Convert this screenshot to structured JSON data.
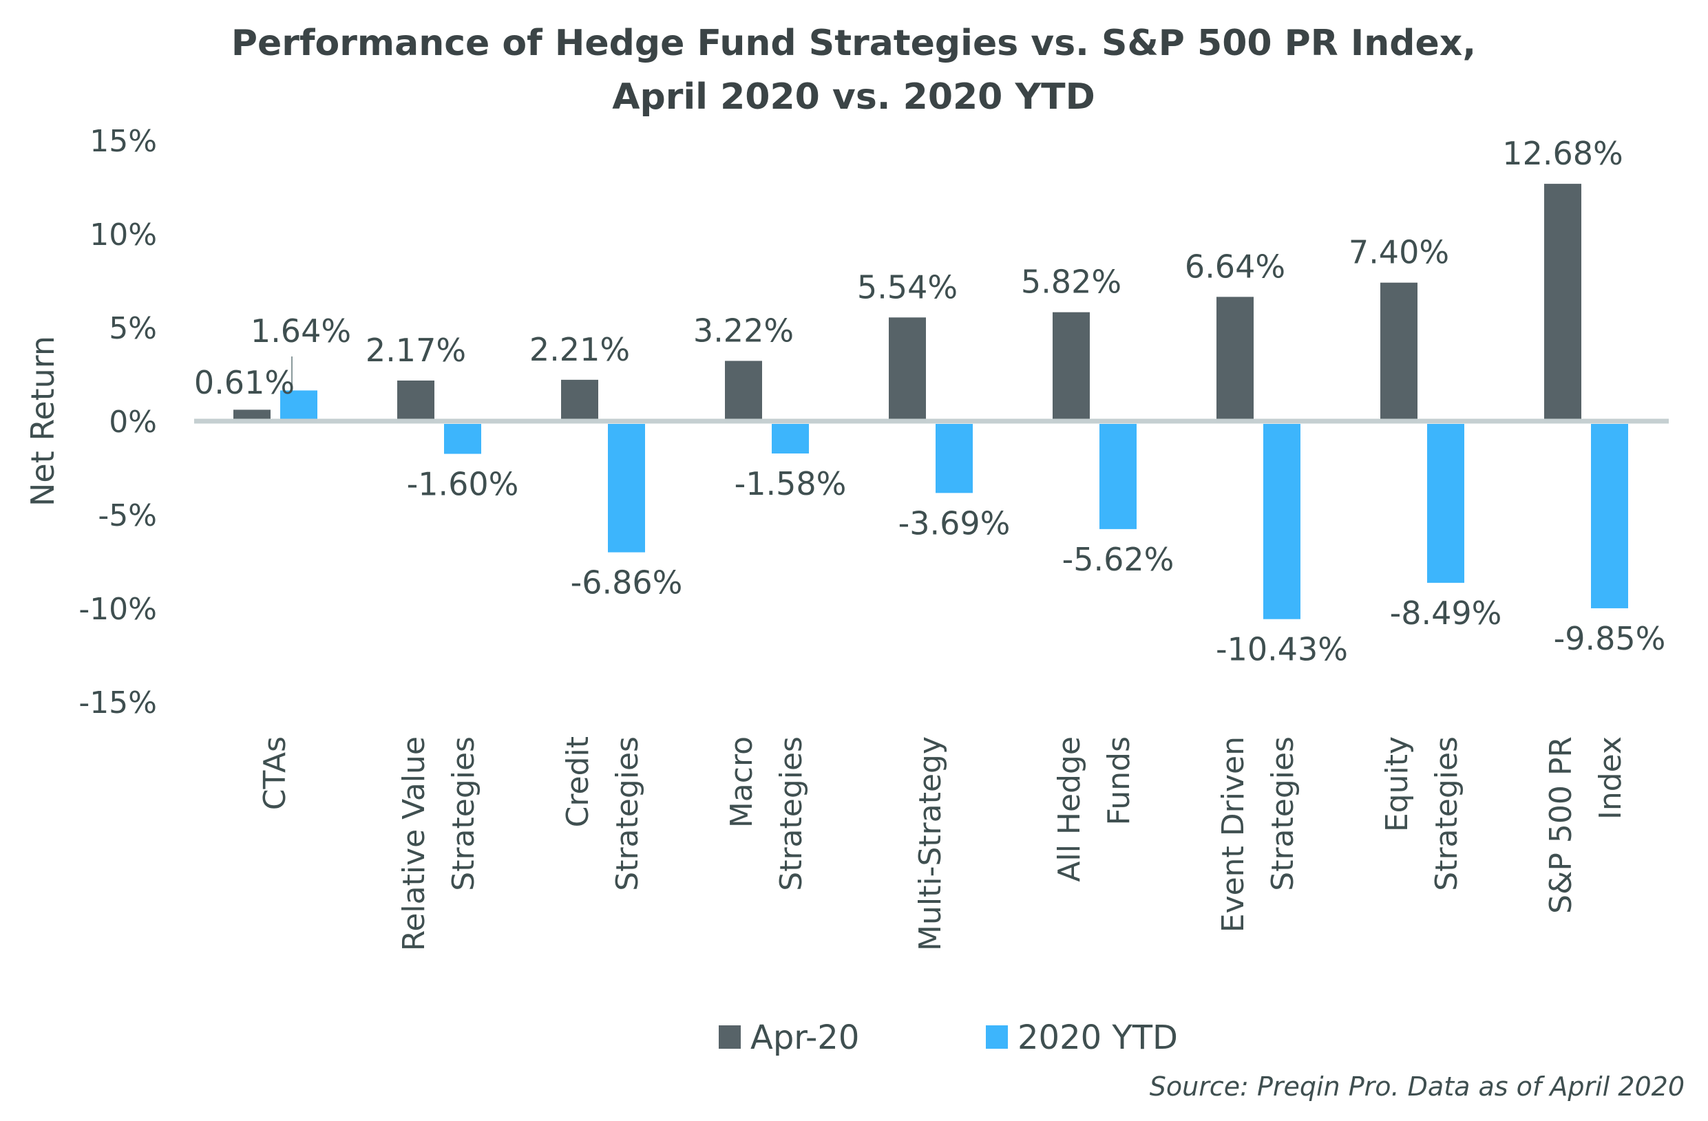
{
  "chart_data": {
    "type": "bar",
    "title": "Performance of Hedge Fund Strategies vs. S&P 500 PR Index,",
    "subtitle": "April 2020 vs. 2020 YTD",
    "xlabel": "",
    "ylabel": "Net Return",
    "ylim": [
      -15,
      15
    ],
    "yticks": [
      15,
      10,
      5,
      0,
      -5,
      -10,
      -15
    ],
    "ytick_labels": [
      "15%",
      "10%",
      "5%",
      "0%",
      "-5%",
      "-10%",
      "-15%"
    ],
    "grid": false,
    "legend_position": "bottom-center",
    "categories": [
      [
        "CTAs"
      ],
      [
        "Relative Value",
        "Strategies"
      ],
      [
        "Credit",
        "Strategies"
      ],
      [
        "Macro",
        "Strategies"
      ],
      [
        "Multi-Strategy"
      ],
      [
        "All Hedge",
        "Funds"
      ],
      [
        "Event Driven",
        "Strategies"
      ],
      [
        "Equity",
        "Strategies"
      ],
      [
        "S&P 500 PR",
        "Index"
      ]
    ],
    "series": [
      {
        "name": "Apr-20",
        "color": "#576368",
        "values": [
          0.61,
          2.17,
          2.21,
          3.22,
          5.54,
          5.82,
          6.64,
          7.4,
          12.68
        ],
        "labels": [
          "0.61%",
          "2.17%",
          "2.21%",
          "3.22%",
          "5.54%",
          "5.82%",
          "6.64%",
          "7.40%",
          "12.68%"
        ]
      },
      {
        "name": "2020 YTD",
        "color": "#3db5fc",
        "values": [
          1.64,
          -1.6,
          -6.86,
          -1.58,
          -3.69,
          -5.62,
          -10.43,
          -8.49,
          -9.85
        ],
        "labels": [
          "1.64%",
          "-1.60%",
          "-6.86%",
          "-1.58%",
          "-3.69%",
          "-5.62%",
          "-10.43%",
          "-8.49%",
          "-9.85%"
        ]
      }
    ],
    "zero_line_color": "#c5cfd1",
    "source": "Source: Preqin Pro. Data as of April 2020"
  }
}
